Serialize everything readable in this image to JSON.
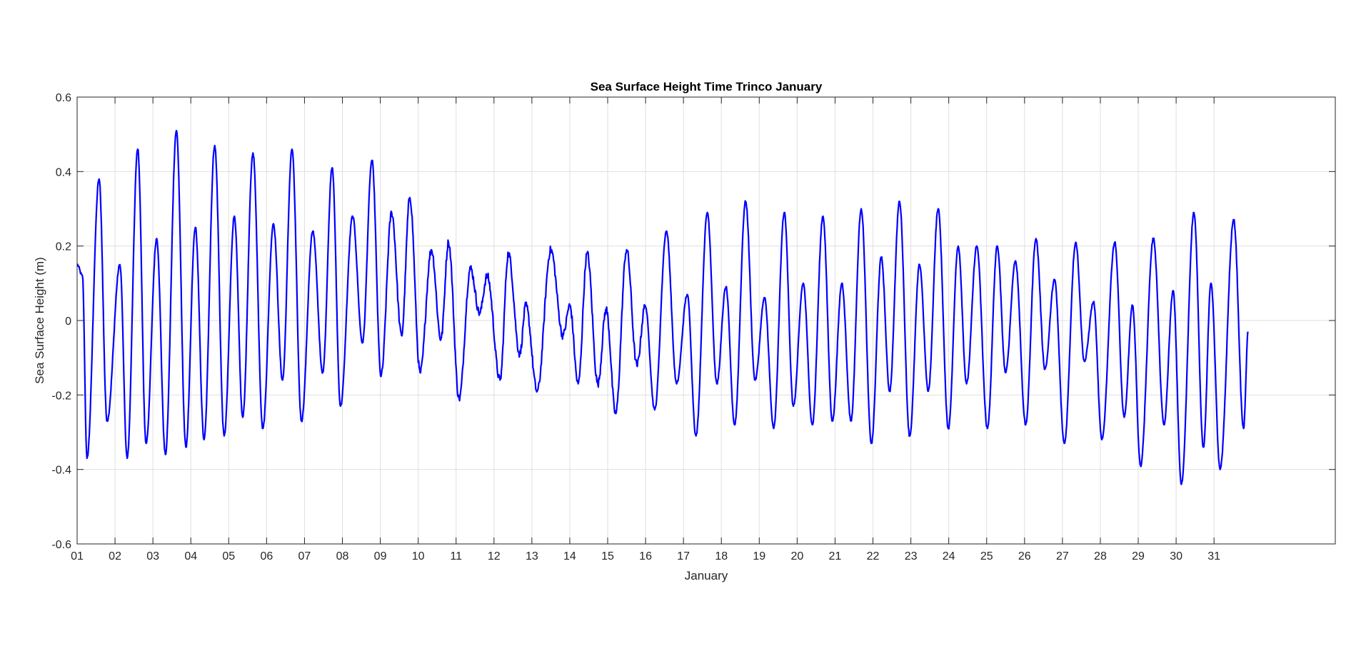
{
  "chart_data": {
    "type": "line",
    "title": "Sea Surface Height Time Trinco January",
    "xlabel": "January",
    "ylabel": "Sea Surface Height (m)",
    "xlim": [
      1,
      34.2
    ],
    "ylim": [
      -0.6,
      0.6
    ],
    "grid": true,
    "x_tick_labels": [
      "01",
      "02",
      "03",
      "04",
      "05",
      "06",
      "07",
      "08",
      "09",
      "10",
      "11",
      "12",
      "13",
      "14",
      "15",
      "16",
      "17",
      "18",
      "19",
      "20",
      "21",
      "22",
      "23",
      "24",
      "25",
      "26",
      "27",
      "28",
      "29",
      "30",
      "31"
    ],
    "y_tick_labels": [
      "-0.6",
      "-0.4",
      "-0.2",
      "0",
      "0.2",
      "0.4",
      "0.6"
    ],
    "y_ticks": [
      -0.6,
      -0.4,
      -0.2,
      0,
      0.2,
      0.4,
      0.6
    ],
    "line_color": "#0000ff",
    "series": [
      {
        "x_unit": "day of January",
        "extrema": [
          [
            1.0,
            0.15
          ],
          [
            1.14,
            0.12
          ],
          [
            1.26,
            -0.37
          ],
          [
            1.58,
            0.38
          ],
          [
            1.79,
            -0.27
          ],
          [
            2.13,
            0.15
          ],
          [
            2.32,
            -0.37
          ],
          [
            2.6,
            0.46
          ],
          [
            2.82,
            -0.33
          ],
          [
            3.1,
            0.22
          ],
          [
            3.33,
            -0.36
          ],
          [
            3.62,
            0.51
          ],
          [
            3.87,
            -0.34
          ],
          [
            4.12,
            0.25
          ],
          [
            4.35,
            -0.32
          ],
          [
            4.63,
            0.47
          ],
          [
            4.88,
            -0.31
          ],
          [
            5.15,
            0.28
          ],
          [
            5.37,
            -0.26
          ],
          [
            5.64,
            0.45
          ],
          [
            5.9,
            -0.29
          ],
          [
            6.18,
            0.26
          ],
          [
            6.42,
            -0.16
          ],
          [
            6.67,
            0.46
          ],
          [
            6.92,
            -0.27
          ],
          [
            7.22,
            0.24
          ],
          [
            7.48,
            -0.14
          ],
          [
            7.73,
            0.41
          ],
          [
            7.95,
            -0.23
          ],
          [
            8.27,
            0.28
          ],
          [
            8.53,
            -0.06
          ],
          [
            8.78,
            0.43
          ],
          [
            9.02,
            -0.15
          ],
          [
            9.3,
            0.29
          ],
          [
            9.56,
            -0.04
          ],
          [
            9.78,
            0.33
          ],
          [
            10.05,
            -0.14
          ],
          [
            10.35,
            0.19
          ],
          [
            10.6,
            -0.05
          ],
          [
            10.8,
            0.21
          ],
          [
            11.08,
            -0.21
          ],
          [
            11.38,
            0.14
          ],
          [
            11.62,
            0.02
          ],
          [
            11.82,
            0.12
          ],
          [
            12.16,
            -0.16
          ],
          [
            12.38,
            0.18
          ],
          [
            12.68,
            -0.09
          ],
          [
            12.84,
            0.04
          ],
          [
            13.14,
            -0.19
          ],
          [
            13.5,
            0.19
          ],
          [
            13.82,
            -0.04
          ],
          [
            14.0,
            0.04
          ],
          [
            14.22,
            -0.17
          ],
          [
            14.46,
            0.18
          ],
          [
            14.74,
            -0.17
          ],
          [
            14.96,
            0.03
          ],
          [
            15.21,
            -0.25
          ],
          [
            15.5,
            0.19
          ],
          [
            15.77,
            -0.12
          ],
          [
            15.99,
            0.04
          ],
          [
            16.24,
            -0.24
          ],
          [
            16.55,
            0.24
          ],
          [
            16.82,
            -0.17
          ],
          [
            17.1,
            0.07
          ],
          [
            17.33,
            -0.31
          ],
          [
            17.63,
            0.29
          ],
          [
            17.88,
            -0.17
          ],
          [
            18.12,
            0.09
          ],
          [
            18.35,
            -0.28
          ],
          [
            18.64,
            0.32
          ],
          [
            18.89,
            -0.16
          ],
          [
            19.14,
            0.06
          ],
          [
            19.38,
            -0.29
          ],
          [
            19.66,
            0.29
          ],
          [
            19.9,
            -0.23
          ],
          [
            20.16,
            0.1
          ],
          [
            20.4,
            -0.28
          ],
          [
            20.68,
            0.28
          ],
          [
            20.93,
            -0.27
          ],
          [
            21.18,
            0.1
          ],
          [
            21.42,
            -0.27
          ],
          [
            21.69,
            0.3
          ],
          [
            21.96,
            -0.33
          ],
          [
            22.22,
            0.17
          ],
          [
            22.44,
            -0.19
          ],
          [
            22.7,
            0.32
          ],
          [
            22.97,
            -0.31
          ],
          [
            23.23,
            0.15
          ],
          [
            23.46,
            -0.19
          ],
          [
            23.72,
            0.3
          ],
          [
            23.99,
            -0.29
          ],
          [
            24.25,
            0.2
          ],
          [
            24.47,
            -0.17
          ],
          [
            24.74,
            0.2
          ],
          [
            25.02,
            -0.29
          ],
          [
            25.28,
            0.2
          ],
          [
            25.5,
            -0.14
          ],
          [
            25.76,
            0.16
          ],
          [
            26.03,
            -0.28
          ],
          [
            26.3,
            0.22
          ],
          [
            26.54,
            -0.13
          ],
          [
            26.79,
            0.11
          ],
          [
            27.05,
            -0.33
          ],
          [
            27.35,
            0.21
          ],
          [
            27.58,
            -0.11
          ],
          [
            27.82,
            0.05
          ],
          [
            28.04,
            -0.32
          ],
          [
            28.38,
            0.21
          ],
          [
            28.63,
            -0.26
          ],
          [
            28.85,
            0.04
          ],
          [
            29.06,
            -0.39
          ],
          [
            29.4,
            0.22
          ],
          [
            29.68,
            -0.28
          ],
          [
            29.92,
            0.08
          ],
          [
            30.14,
            -0.44
          ],
          [
            30.47,
            0.29
          ],
          [
            30.72,
            -0.34
          ],
          [
            30.92,
            0.1
          ],
          [
            31.16,
            -0.4
          ],
          [
            31.52,
            0.27
          ],
          [
            31.78,
            -0.29
          ],
          [
            31.9,
            -0.03
          ]
        ]
      }
    ]
  }
}
